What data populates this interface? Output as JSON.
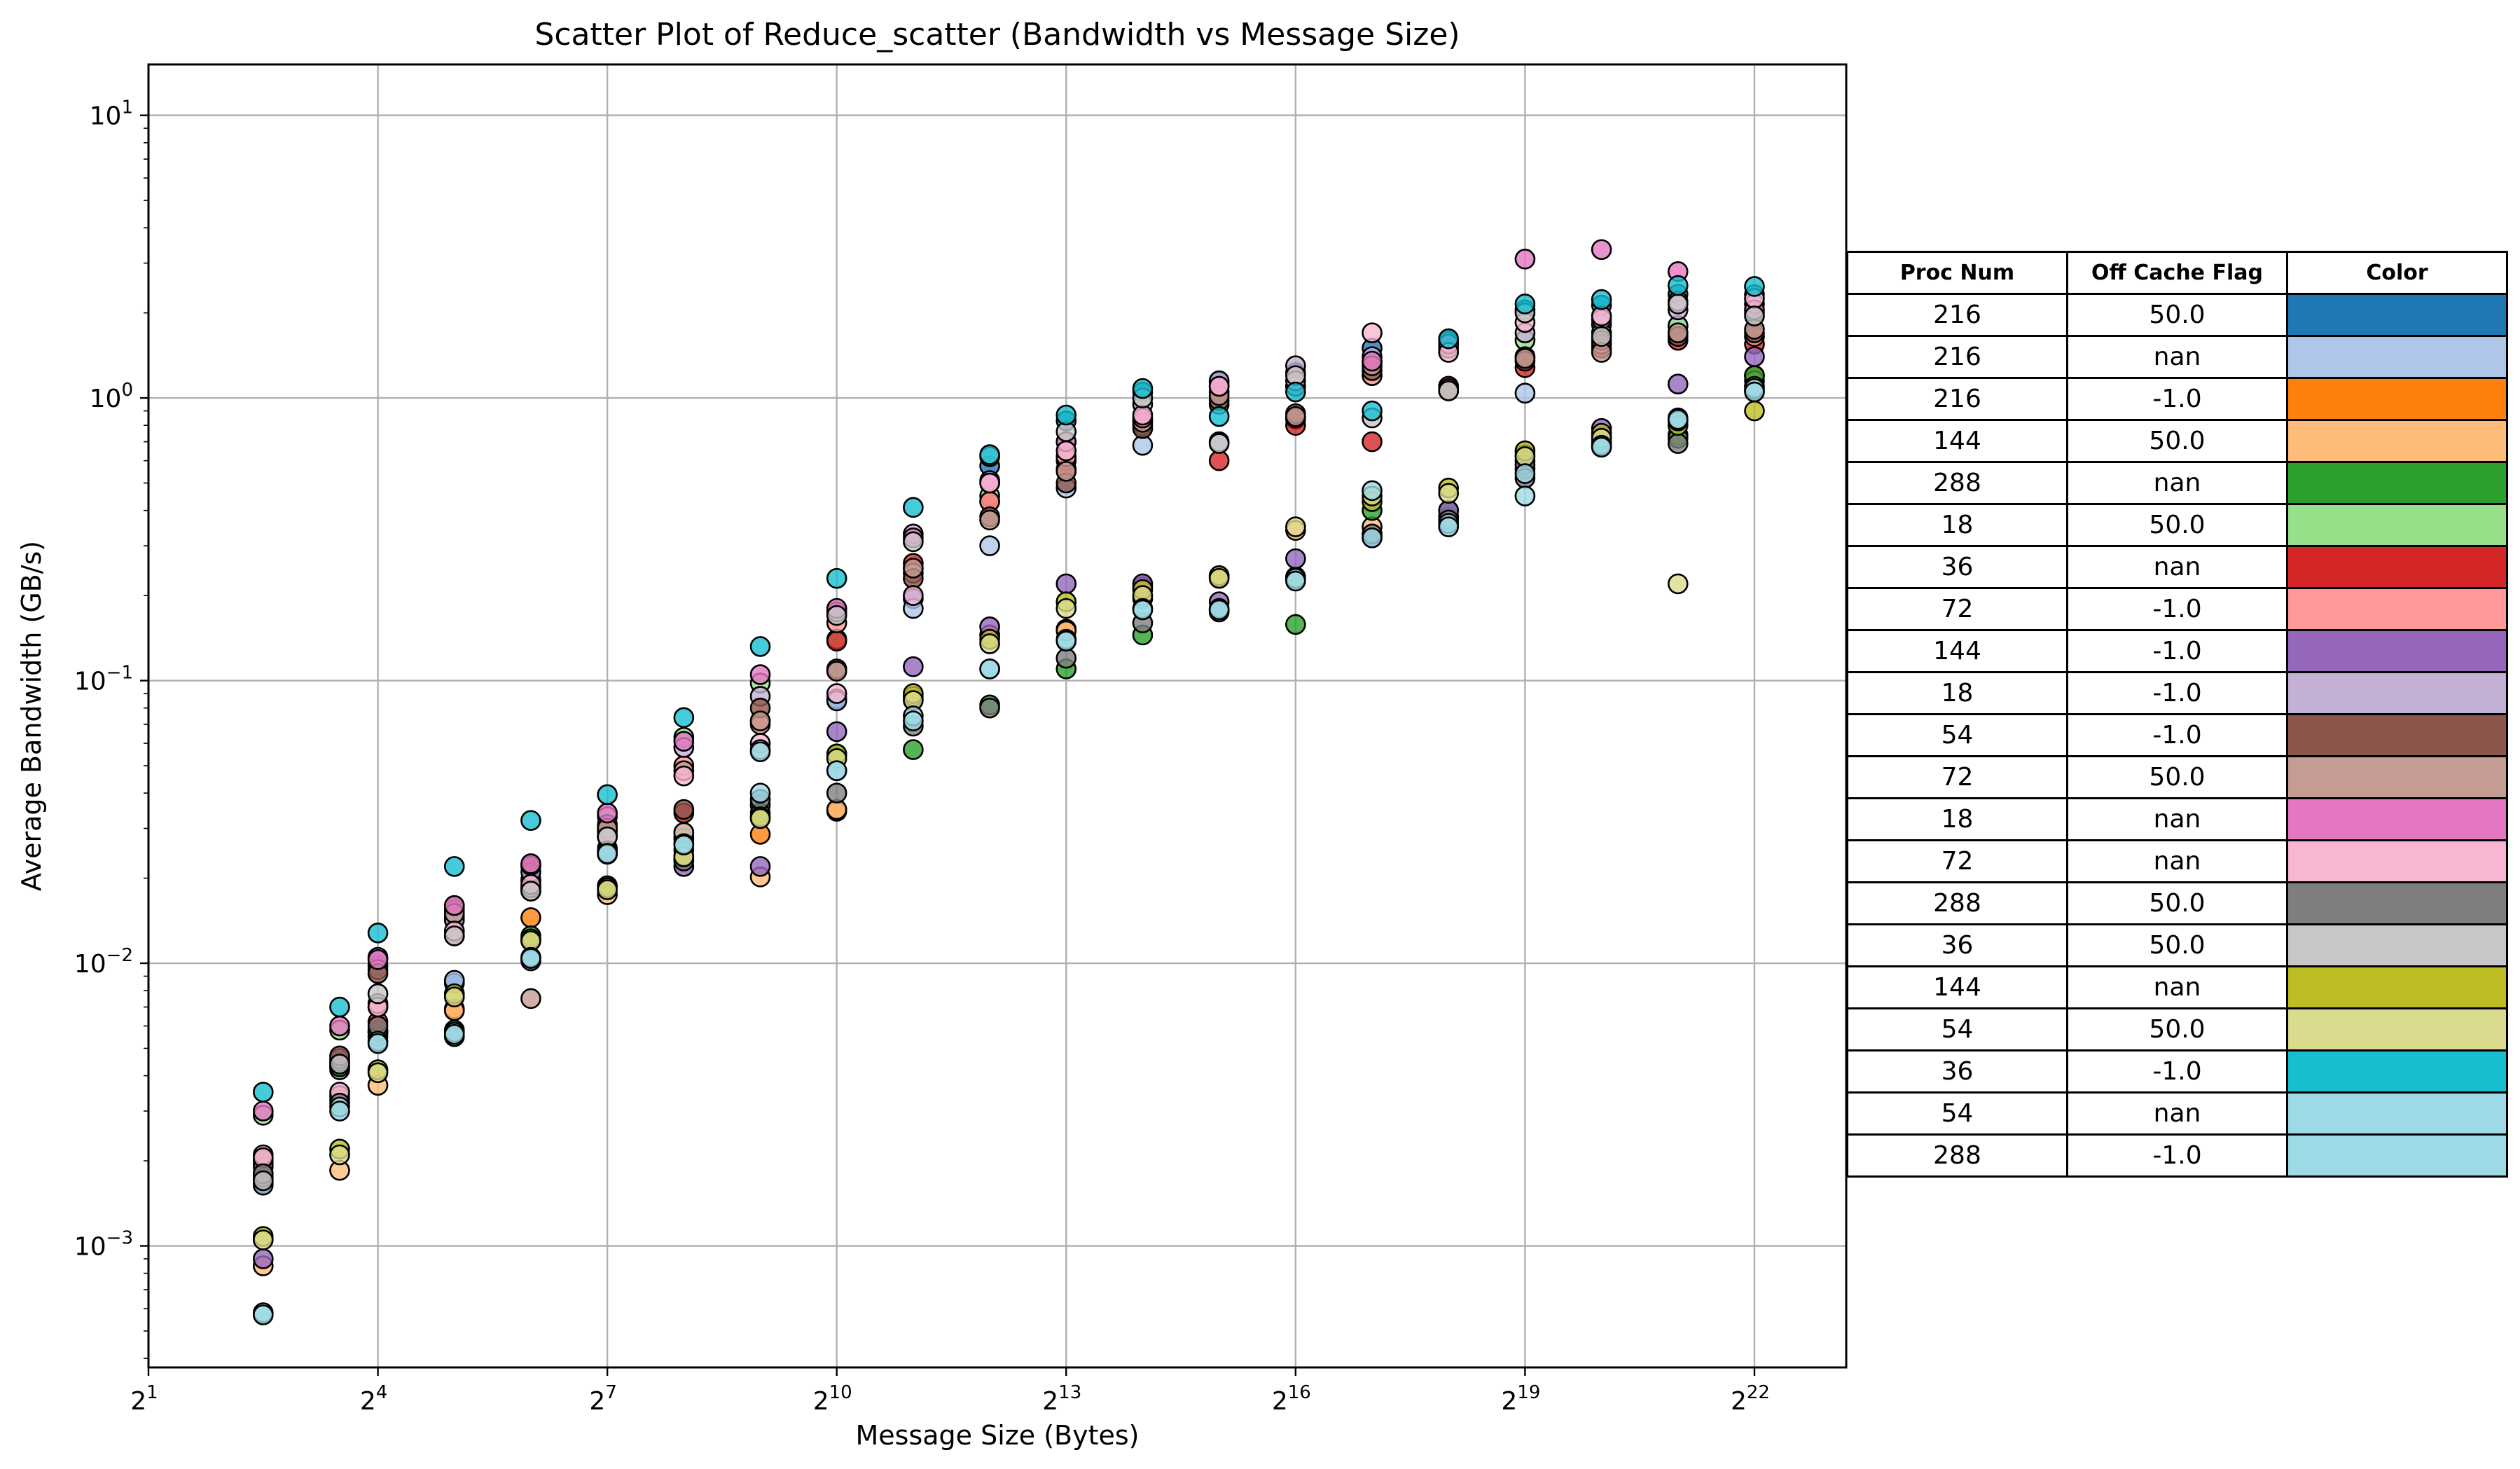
{
  "chart_data": {
    "type": "scatter",
    "title": "Scatter Plot of Reduce_scatter (Bandwidth vs Message Size)",
    "xlabel": "Message Size (Bytes)",
    "ylabel": "Average Bandwidth (GB/s)",
    "xscale": "log2",
    "yscale": "log10",
    "xlim_log2": [
      1,
      23.2
    ],
    "ylim_log10": [
      -3.43,
      1.18
    ],
    "grid": true,
    "x_ticks": [
      {
        "exp": 1,
        "label": "2",
        "sup": "1"
      },
      {
        "exp": 4,
        "label": "2",
        "sup": "4"
      },
      {
        "exp": 7,
        "label": "2",
        "sup": "7"
      },
      {
        "exp": 10,
        "label": "2",
        "sup": "10"
      },
      {
        "exp": 13,
        "label": "2",
        "sup": "13"
      },
      {
        "exp": 16,
        "label": "2",
        "sup": "16"
      },
      {
        "exp": 19,
        "label": "2",
        "sup": "19"
      },
      {
        "exp": 22,
        "label": "2",
        "sup": "22"
      }
    ],
    "y_ticks": [
      {
        "exp": 1,
        "label": "10",
        "sup": "1"
      },
      {
        "exp": 0,
        "label": "10",
        "sup": "0"
      },
      {
        "exp": -1,
        "label": "10",
        "sup": "−1"
      },
      {
        "exp": -2,
        "label": "10",
        "sup": "−2"
      },
      {
        "exp": -3,
        "label": "10",
        "sup": "−3"
      }
    ],
    "legend_headers": [
      "Proc Num",
      "Off Cache Flag",
      "Color"
    ],
    "series": [
      {
        "proc": "216",
        "flag": "50.0",
        "color": "#1f77b4",
        "x": [
          2.5,
          3.5,
          4,
          5,
          6,
          7,
          8,
          9,
          10,
          11,
          12,
          13,
          14,
          15,
          16,
          17,
          18,
          19,
          20,
          21,
          22
        ],
        "y": [
          0.00166,
          0.0043,
          0.0057,
          0.0085,
          0.0198,
          0.0246,
          0.0278,
          0.0365,
          0.0862,
          0.195,
          0.575,
          0.83,
          1.05,
          1.14,
          1.23,
          1.5,
          1.59,
          2.05,
          2.13,
          2.33,
          2.32
        ]
      },
      {
        "proc": "216",
        "flag": "nan",
        "color": "#aec7e8",
        "x": [
          2.5,
          3.5,
          4,
          5,
          6,
          7,
          8,
          9,
          10,
          11,
          12,
          13,
          14,
          15,
          16,
          17,
          18,
          19,
          20,
          21,
          22
        ],
        "y": [
          0.00164,
          0.0042,
          0.0055,
          0.0087,
          0.0195,
          0.0243,
          0.0275,
          0.0362,
          0.0848,
          0.18,
          0.3,
          0.48,
          0.68,
          0.7,
          0.84,
          1.33,
          1.06,
          1.04,
          1.82,
          1.8,
          1.2
        ]
      },
      {
        "proc": "216",
        "flag": "-1.0",
        "color": "#ff7f0e",
        "x": [
          2.5,
          3.5,
          4,
          5,
          6,
          7,
          8,
          9,
          10,
          11,
          12,
          13,
          14,
          15,
          16,
          17,
          18,
          19,
          20,
          21,
          22
        ],
        "y": [
          0.00171,
          0.0044,
          0.0057,
          0.0069,
          0.0145,
          0.0255,
          0.029,
          0.0286,
          0.0345,
          0.086,
          0.145,
          0.152,
          0.195,
          0.232,
          0.233,
          0.33,
          0.38,
          0.56,
          0.73,
          0.85,
          1.2
        ]
      },
      {
        "proc": "144",
        "flag": "50.0",
        "color": "#ffbb78",
        "x": [
          2.5,
          3.5,
          4,
          5,
          6,
          7,
          8,
          9,
          10,
          11,
          12,
          13,
          14,
          15,
          16,
          17,
          18,
          19,
          20,
          21,
          22
        ],
        "y": [
          0.00085,
          0.00185,
          0.0037,
          0.0068,
          0.012,
          0.0175,
          0.0235,
          0.0202,
          0.035,
          0.088,
          0.145,
          0.15,
          0.215,
          0.235,
          0.34,
          0.35,
          0.38,
          0.63,
          0.69,
          0.74,
          1.15
        ]
      },
      {
        "proc": "288",
        "flag": "nan",
        "color": "#2ca02c",
        "x": [
          2.5,
          3.5,
          4,
          5,
          6,
          7,
          8,
          9,
          10,
          11,
          12,
          13,
          14,
          15,
          16,
          17,
          18,
          19,
          20,
          21,
          22
        ],
        "y": [
          0.00175,
          0.0043,
          0.0058,
          0.0058,
          0.0125,
          0.0188,
          0.0252,
          0.034,
          0.055,
          0.057,
          0.082,
          0.11,
          0.145,
          0.178,
          0.158,
          0.4,
          0.4,
          0.6,
          0.7,
          0.72,
          1.2
        ]
      },
      {
        "proc": "18",
        "flag": "50.0",
        "color": "#98df8a",
        "x": [
          2.5,
          3.5,
          4,
          5,
          6,
          7,
          8,
          9,
          10,
          11,
          12,
          13,
          14,
          15,
          16,
          17,
          18,
          19,
          20,
          21,
          22
        ],
        "y": [
          0.0029,
          0.0058,
          0.0098,
          0.0155,
          0.022,
          0.033,
          0.063,
          0.098,
          0.14,
          0.25,
          0.45,
          0.6,
          0.8,
          0.95,
          1.1,
          1.2,
          1.5,
          1.6,
          1.7,
          1.8,
          2.0
        ]
      },
      {
        "proc": "36",
        "flag": "nan",
        "color": "#d62728",
        "x": [
          2.5,
          3.5,
          4,
          5,
          6,
          7,
          8,
          9,
          10,
          11,
          12,
          13,
          14,
          15,
          16,
          17,
          18,
          19,
          20,
          21,
          22
        ],
        "y": [
          0.0018,
          0.0045,
          0.0062,
          0.0125,
          0.0185,
          0.029,
          0.034,
          0.072,
          0.138,
          0.26,
          0.43,
          0.56,
          0.83,
          0.6,
          0.8,
          0.7,
          1.1,
          1.28,
          1.5,
          1.6,
          1.55
        ]
      },
      {
        "proc": "72",
        "flag": "-1.0",
        "color": "#ff9896",
        "x": [
          2.5,
          3.5,
          4,
          5,
          6,
          7,
          8,
          9,
          10,
          11,
          12,
          13,
          14,
          15,
          16,
          17,
          18,
          19,
          20,
          21,
          22
        ],
        "y": [
          0.002,
          0.0033,
          0.007,
          0.0125,
          0.018,
          0.0295,
          0.05,
          0.07,
          0.16,
          0.24,
          0.43,
          0.62,
          0.83,
          1.05,
          0.85,
          1.2,
          1.1,
          1.4,
          1.55,
          1.7,
          1.65
        ]
      },
      {
        "proc": "144",
        "flag": "-1.0",
        "color": "#9467bd",
        "x": [
          2.5,
          3.5,
          4,
          5,
          6,
          7,
          8,
          9,
          10,
          11,
          12,
          13,
          14,
          15,
          16,
          17,
          18,
          19,
          20,
          21,
          22
        ],
        "y": [
          0.0009,
          0.0045,
          0.0105,
          0.0145,
          0.0185,
          0.031,
          0.022,
          0.022,
          0.066,
          0.112,
          0.155,
          0.22,
          0.22,
          0.19,
          0.27,
          0.32,
          0.4,
          0.58,
          0.78,
          1.12,
          1.4
        ]
      },
      {
        "proc": "18",
        "flag": "-1.0",
        "color": "#c5b0d5",
        "x": [
          2.5,
          3.5,
          4,
          5,
          6,
          7,
          8,
          9,
          10,
          11,
          12,
          13,
          14,
          15,
          16,
          17,
          18,
          19,
          20,
          21,
          22
        ],
        "y": [
          0.00195,
          0.0046,
          0.0095,
          0.0142,
          0.021,
          0.0282,
          0.058,
          0.088,
          0.175,
          0.33,
          0.51,
          0.7,
          0.95,
          1.15,
          1.3,
          1.4,
          1.55,
          1.7,
          1.9,
          2.05,
          2.15
        ]
      },
      {
        "proc": "54",
        "flag": "-1.0",
        "color": "#8c564b",
        "x": [
          2.5,
          3.5,
          4,
          5,
          6,
          7,
          8,
          9,
          10,
          11,
          12,
          13,
          14,
          15,
          16,
          17,
          18,
          19,
          20,
          21,
          22
        ],
        "y": [
          0.0019,
          0.0047,
          0.0092,
          0.016,
          0.0222,
          0.03,
          0.035,
          0.08,
          0.11,
          0.23,
          0.38,
          0.5,
          0.78,
          0.98,
          0.88,
          1.25,
          1.08,
          1.35,
          1.6,
          1.65,
          1.7
        ]
      },
      {
        "proc": "72",
        "flag": "50.0",
        "color": "#c49c94",
        "x": [
          2.5,
          3.5,
          4,
          5,
          6,
          7,
          8,
          9,
          10,
          11,
          12,
          13,
          14,
          15,
          16,
          17,
          18,
          19,
          20,
          21,
          22
        ],
        "y": [
          0.0021,
          0.0034,
          0.0072,
          0.015,
          0.0075,
          0.03,
          0.048,
          0.072,
          0.108,
          0.25,
          0.37,
          0.55,
          0.82,
          1.02,
          0.86,
          1.3,
          1.06,
          1.38,
          1.45,
          1.7,
          1.75
        ]
      },
      {
        "proc": "18",
        "flag": "nan",
        "color": "#e377c2",
        "x": [
          2.5,
          3.5,
          4,
          5,
          6,
          7,
          8,
          9,
          10,
          11,
          12,
          13,
          14,
          15,
          16,
          17,
          18,
          19,
          20,
          21,
          22
        ],
        "y": [
          0.003,
          0.006,
          0.0103,
          0.016,
          0.0225,
          0.034,
          0.061,
          0.105,
          0.18,
          0.32,
          0.5,
          0.7,
          0.85,
          1.1,
          1.1,
          1.35,
          1.55,
          3.1,
          3.35,
          2.8,
          2.05
        ]
      },
      {
        "proc": "72",
        "flag": "nan",
        "color": "#f7b6d2",
        "x": [
          2.5,
          3.5,
          4,
          5,
          6,
          7,
          8,
          9,
          10,
          11,
          12,
          13,
          14,
          15,
          16,
          17,
          18,
          19,
          20,
          21,
          22
        ],
        "y": [
          0.00205,
          0.0035,
          0.007,
          0.013,
          0.019,
          0.028,
          0.046,
          0.06,
          0.09,
          0.2,
          0.5,
          0.65,
          0.87,
          1.1,
          1.15,
          1.7,
          1.45,
          1.85,
          1.95,
          2.2,
          2.25
        ]
      },
      {
        "proc": "288",
        "flag": "50.0",
        "color": "#7f7f7f",
        "x": [
          2.5,
          3.5,
          4,
          5,
          6,
          7,
          8,
          9,
          10,
          11,
          12,
          13,
          14,
          15,
          16,
          17,
          18,
          19,
          20,
          21,
          22
        ],
        "y": [
          0.0018,
          0.0032,
          0.006,
          0.0055,
          0.0102,
          0.025,
          0.023,
          0.038,
          0.04,
          0.069,
          0.08,
          0.12,
          0.16,
          0.175,
          0.23,
          0.33,
          0.37,
          0.52,
          0.67,
          0.69,
          1.06
        ]
      },
      {
        "proc": "36",
        "flag": "50.0",
        "color": "#c7c7c7",
        "x": [
          2.5,
          3.5,
          4,
          5,
          6,
          7,
          8,
          9,
          10,
          11,
          12,
          13,
          14,
          15,
          16,
          17,
          18,
          19,
          20,
          21,
          22
        ],
        "y": [
          0.0017,
          0.0044,
          0.0078,
          0.0125,
          0.018,
          0.028,
          0.029,
          0.057,
          0.17,
          0.31,
          0.62,
          0.76,
          1.0,
          0.69,
          1.2,
          0.85,
          1.06,
          2.0,
          1.65,
          2.15,
          1.95
        ]
      },
      {
        "proc": "144",
        "flag": "nan",
        "color": "#bcbd22",
        "x": [
          2.5,
          3.5,
          4,
          5,
          6,
          7,
          8,
          9,
          10,
          11,
          12,
          13,
          14,
          15,
          16,
          17,
          18,
          19,
          20,
          21,
          22
        ],
        "y": [
          0.00108,
          0.0022,
          0.0042,
          0.0078,
          0.0122,
          0.0185,
          0.024,
          0.033,
          0.055,
          0.09,
          0.14,
          0.19,
          0.21,
          0.235,
          0.23,
          0.43,
          0.48,
          0.65,
          0.75,
          0.8,
          0.9
        ]
      },
      {
        "proc": "54",
        "flag": "50.0",
        "color": "#dbdb8d",
        "x": [
          2.5,
          3.5,
          4,
          5,
          6,
          7,
          8,
          9,
          10,
          11,
          12,
          13,
          14,
          15,
          16,
          17,
          18,
          19,
          20,
          21,
          22
        ],
        "y": [
          0.00105,
          0.0021,
          0.0041,
          0.0076,
          0.012,
          0.0182,
          0.0238,
          0.0325,
          0.053,
          0.085,
          0.135,
          0.18,
          0.2,
          0.23,
          0.35,
          0.45,
          0.46,
          0.62,
          0.72,
          0.22,
          1.1
        ]
      },
      {
        "proc": "36",
        "flag": "-1.0",
        "color": "#17becf",
        "x": [
          2.5,
          3.5,
          4,
          5,
          6,
          7,
          8,
          9,
          10,
          11,
          12,
          13,
          14,
          15,
          16,
          17,
          18,
          19,
          20,
          21,
          22
        ],
        "y": [
          0.0035,
          0.007,
          0.0128,
          0.022,
          0.032,
          0.0395,
          0.074,
          0.132,
          0.23,
          0.41,
          0.63,
          0.87,
          1.08,
          0.86,
          1.05,
          0.9,
          1.62,
          2.15,
          2.23,
          2.5,
          2.48
        ]
      },
      {
        "proc": "54",
        "flag": "nan",
        "color": "#9edae5",
        "x": [
          2.5,
          3.5,
          4,
          5,
          6,
          7,
          8,
          9,
          10,
          11,
          12,
          13,
          14,
          15,
          16,
          17,
          18,
          19,
          20,
          21,
          22
        ],
        "y": [
          0.00058,
          0.0031,
          0.0053,
          0.0057,
          0.0105,
          0.0245,
          0.0265,
          0.056,
          0.048,
          0.075,
          0.11,
          0.14,
          0.18,
          0.18,
          0.23,
          0.47,
          0.36,
          0.45,
          0.68,
          0.83,
          1.08
        ]
      },
      {
        "proc": "288",
        "flag": "-1.0",
        "color": "#9edae5",
        "x": [
          2.5,
          3.5,
          4,
          5,
          6,
          7,
          8,
          9,
          10,
          11,
          12,
          13,
          14,
          15,
          16,
          17,
          18,
          19,
          20,
          21,
          22
        ],
        "y": [
          0.00057,
          0.003,
          0.0052,
          0.0056,
          0.0104,
          0.0244,
          0.0262,
          0.04,
          0.048,
          0.072,
          0.11,
          0.138,
          0.178,
          0.178,
          0.225,
          0.32,
          0.35,
          0.54,
          0.67,
          0.84,
          1.05
        ]
      }
    ]
  }
}
